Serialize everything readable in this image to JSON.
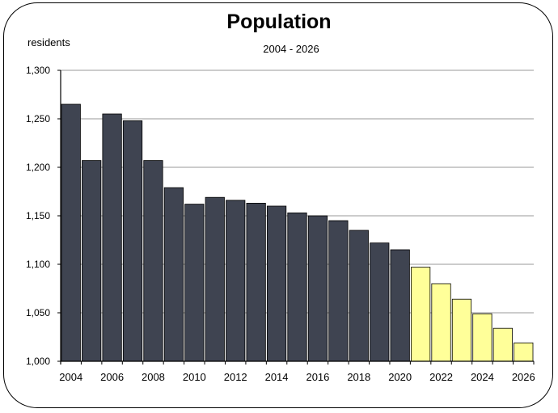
{
  "chart_data": {
    "type": "bar",
    "title": "Population",
    "subtitle": "2004 - 2026",
    "ylabel": "residents",
    "xlabel": "",
    "ylim": [
      1000,
      1300
    ],
    "yticks": [
      "1,000",
      "1,050",
      "1,100",
      "1,150",
      "1,200",
      "1,250",
      "1,300"
    ],
    "xtick_labels": [
      "2004",
      "2006",
      "2008",
      "2010",
      "2012",
      "2014",
      "2016",
      "2018",
      "2020",
      "2022",
      "2024",
      "2026"
    ],
    "categories": [
      "2004",
      "2005",
      "2006",
      "2007",
      "2008",
      "2009",
      "2010",
      "2011",
      "2012",
      "2013",
      "2014",
      "2015",
      "2016",
      "2017",
      "2018",
      "2019",
      "2020",
      "2021",
      "2022",
      "2023",
      "2024",
      "2025",
      "2026"
    ],
    "values": [
      1265,
      1207,
      1255,
      1248,
      1207,
      1179,
      1162,
      1169,
      1166,
      1163,
      1160,
      1153,
      1150,
      1145,
      1135,
      1122,
      1115,
      1097,
      1080,
      1064,
      1049,
      1034,
      1019
    ],
    "segments": [
      {
        "from": "2004",
        "to": "2020",
        "color": "#3f4451"
      },
      {
        "from": "2021",
        "to": "2026",
        "color": "#ffff99"
      }
    ],
    "grid": true
  }
}
